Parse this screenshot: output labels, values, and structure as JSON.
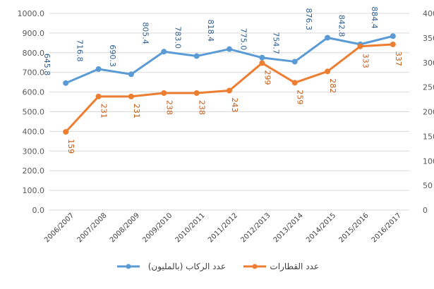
{
  "chart_data": {
    "type": "line",
    "title": "",
    "categories": [
      "2006/2007",
      "2007/2008",
      "2008/2009",
      "2009/2010",
      "2010/2011",
      "2011/2012",
      "2012/2013",
      "2013/2014",
      "2014/2015",
      "2015/2016",
      "2016/2017"
    ],
    "series": [
      {
        "name": "عدد الركاب (بالمليون)",
        "axis": "left",
        "color": "#5B9BD5",
        "values": [
          645.8,
          716.8,
          690.3,
          805.4,
          783.0,
          818.4,
          775.0,
          754.7,
          876.3,
          842.8,
          884.4
        ],
        "labels": [
          "645.8",
          "716.8",
          "690.3",
          "805.4",
          "783.0",
          "818.4",
          "775.0",
          "754.7",
          "876.3",
          "842.8",
          "884.4"
        ]
      },
      {
        "name": "عدد القطارات",
        "axis": "right",
        "color": "#ED7D31",
        "values": [
          159,
          231,
          231,
          238,
          238,
          243,
          299,
          259,
          282,
          333,
          337
        ],
        "labels": [
          "159",
          "231",
          "231",
          "238",
          "238",
          "243",
          "299",
          "259",
          "282",
          "333",
          "337"
        ]
      }
    ],
    "left_axis": {
      "min": 0,
      "max": 1000,
      "step": 100,
      "tick_labels": [
        "0.0",
        "100.0",
        "200.0",
        "300.0",
        "400.0",
        "500.0",
        "600.0",
        "700.0",
        "800.0",
        "900.0",
        "1000.0"
      ]
    },
    "right_axis": {
      "min": 0,
      "max": 400,
      "step": 50,
      "tick_labels": [
        "0",
        "50",
        "100",
        "150",
        "200",
        "250",
        "300",
        "350",
        "400"
      ]
    },
    "grid": "horizontal",
    "legend_position": "bottom"
  }
}
